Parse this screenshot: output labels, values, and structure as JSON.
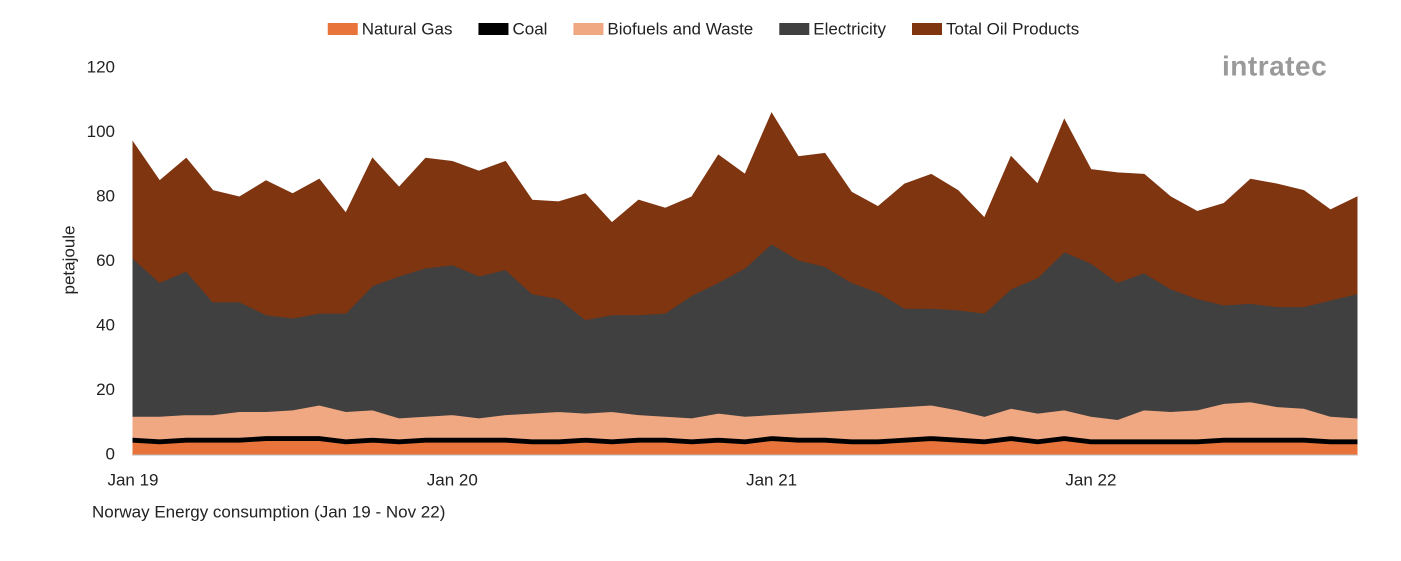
{
  "chart_data": {
    "type": "stacked-area",
    "title": "Norway Energy consumption (Jan 19 - Nov 22)",
    "y_label": "petajoule",
    "logo": "intratec",
    "categories": [
      "Jan 19",
      null,
      null,
      null,
      null,
      null,
      null,
      null,
      null,
      null,
      null,
      null,
      "Jan 20",
      null,
      null,
      null,
      null,
      null,
      null,
      null,
      null,
      null,
      null,
      null,
      "Jan 21",
      null,
      null,
      null,
      null,
      null,
      null,
      null,
      null,
      null,
      null,
      null,
      "Jan 22",
      null,
      null,
      null,
      null,
      null,
      null,
      null,
      null,
      null,
      null
    ],
    "ylim": [
      0,
      120
    ],
    "yticks": [
      0,
      20,
      40,
      60,
      80,
      100,
      120
    ],
    "grid": false,
    "legend": "top",
    "series": [
      {
        "name": "Natural Gas",
        "color": "#e8743b",
        "values": [
          4,
          3.5,
          4,
          4,
          4,
          4.5,
          4.5,
          4.5,
          3.5,
          4,
          3.5,
          4,
          4,
          4,
          4,
          3.5,
          3.5,
          4,
          3.5,
          4,
          4,
          3.5,
          4,
          3.5,
          4.5,
          4,
          4,
          3.5,
          3.5,
          4,
          4.5,
          4,
          3.5,
          4.5,
          3.5,
          4.5,
          3.5,
          3.5,
          3.5,
          3.5,
          3.5,
          4,
          4,
          4,
          4,
          3.5,
          3.5
        ]
      },
      {
        "name": "Coal",
        "color": "#000000",
        "values": [
          1.5,
          1.5,
          1.5,
          1.5,
          1.5,
          1.5,
          1.5,
          1.5,
          1.5,
          1.5,
          1.5,
          1.5,
          1.5,
          1.5,
          1.5,
          1.5,
          1.5,
          1.5,
          1.5,
          1.5,
          1.5,
          1.5,
          1.5,
          1.5,
          1.5,
          1.5,
          1.5,
          1.5,
          1.5,
          1.5,
          1.5,
          1.5,
          1.5,
          1.5,
          1.5,
          1.5,
          1.5,
          1.5,
          1.5,
          1.5,
          1.5,
          1.5,
          1.5,
          1.5,
          1.5,
          1.5,
          1.5
        ]
      },
      {
        "name": "Biofuels and Waste",
        "color": "#f0a882",
        "values": [
          6.5,
          7,
          7,
          7,
          8,
          7.5,
          8,
          9.5,
          8.5,
          8.5,
          6.5,
          6.5,
          7,
          6,
          7,
          8,
          8.5,
          7.5,
          8.5,
          7,
          6.5,
          6.5,
          7.5,
          7,
          6.5,
          7.5,
          8,
          9,
          9.5,
          9.5,
          9.5,
          8.5,
          7,
          8.5,
          8,
          8,
          7,
          6,
          9,
          8.5,
          9,
          10.5,
          11,
          9.5,
          9,
          7,
          6.5
        ]
      },
      {
        "name": "Electricity",
        "color": "#404040",
        "values": [
          49,
          41.5,
          44.5,
          35,
          34,
          30,
          28.5,
          28.5,
          30.5,
          38.5,
          44,
          46,
          46.5,
          44,
          45,
          37,
          35,
          29,
          30,
          31,
          32,
          38,
          40.5,
          46,
          53,
          47.5,
          45,
          39.5,
          36,
          30.5,
          30,
          31,
          32,
          37,
          42,
          49,
          47.5,
          42.5,
          42.5,
          38,
          34.5,
          30.5,
          30.5,
          31,
          31.5,
          36,
          38.5
        ]
      },
      {
        "name": "Total Oil Products",
        "color": "#7f3510",
        "values": [
          36,
          31.5,
          35,
          34.5,
          32.5,
          41.5,
          38.5,
          41.5,
          31,
          39.5,
          27.5,
          34,
          32,
          32.5,
          33.5,
          29,
          30,
          39,
          28.5,
          35.5,
          32.5,
          30.5,
          39.5,
          29,
          40.5,
          32,
          35,
          28,
          26.5,
          38.5,
          41.5,
          37,
          29.5,
          41,
          29,
          41,
          29,
          34,
          30.5,
          28.5,
          27,
          31.5,
          38.5,
          38,
          36,
          28,
          30
        ]
      }
    ]
  }
}
